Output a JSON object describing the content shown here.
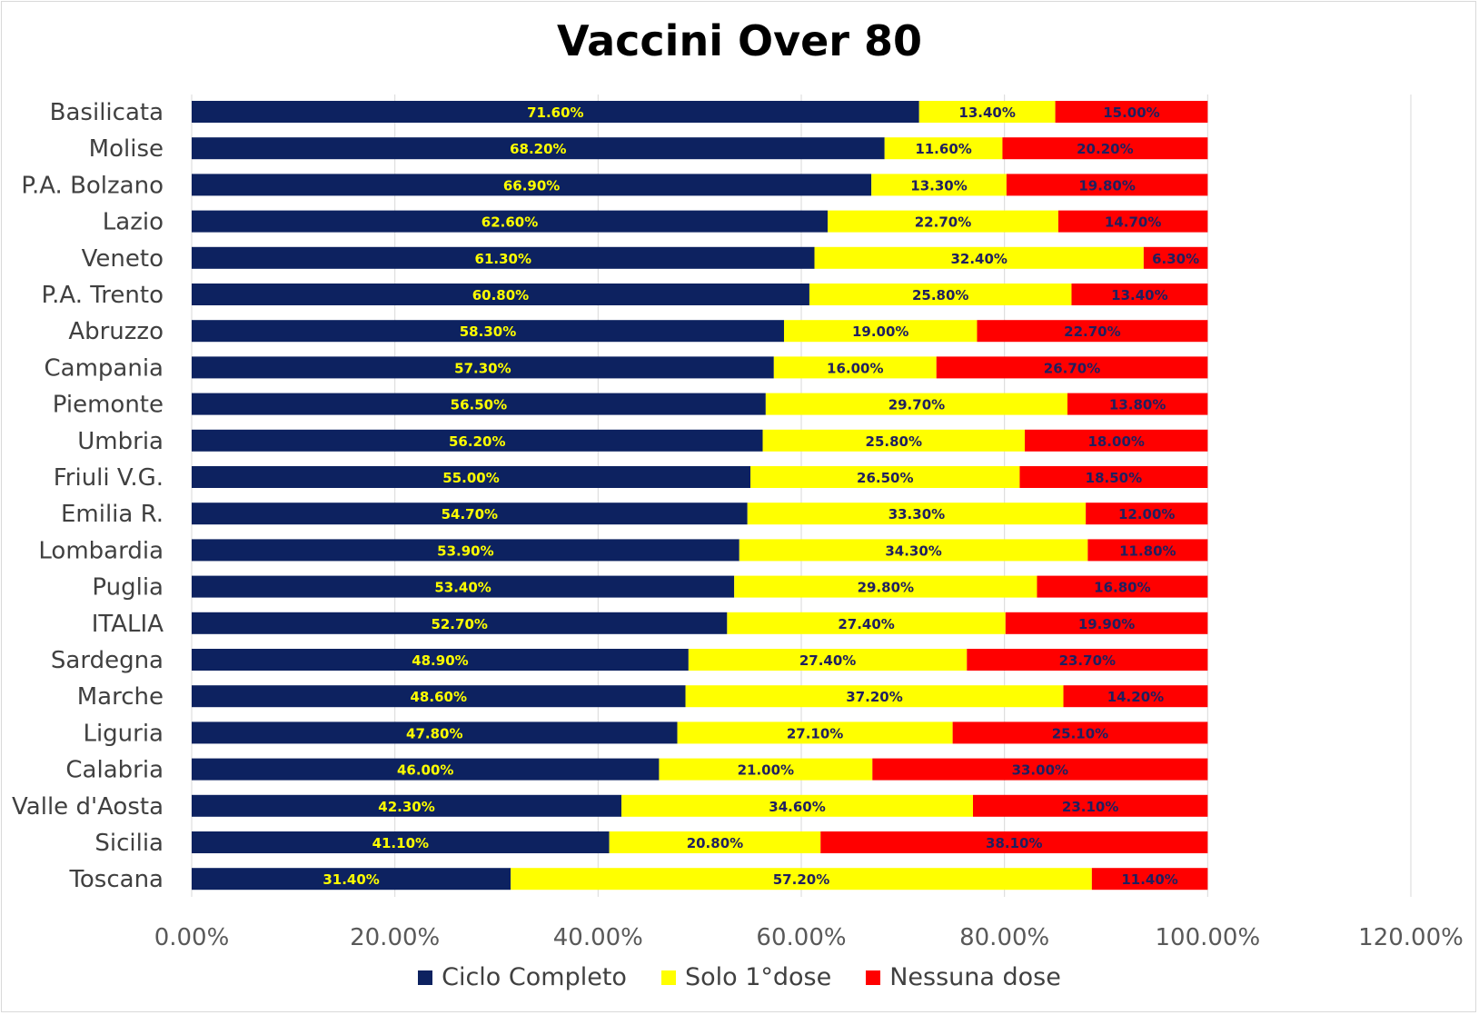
{
  "chart_data": {
    "type": "bar",
    "orientation": "horizontal",
    "stacked": true,
    "title": "Vaccini Over 80",
    "categories": [
      "Basilicata",
      "Molise",
      "P.A. Bolzano",
      "Lazio",
      "Veneto",
      "P.A. Trento",
      "Abruzzo",
      "Campania",
      "Piemonte",
      "Umbria",
      "Friuli V.G.",
      "Emilia R.",
      "Lombardia",
      "Puglia",
      "ITALIA",
      "Sardegna",
      "Marche",
      "Liguria",
      "Calabria",
      "Valle d'Aosta",
      "Sicilia",
      "Toscana"
    ],
    "series": [
      {
        "name": "Ciclo Completo",
        "color": "#0d2260",
        "label_color": "#ffff00",
        "values": [
          71.6,
          68.2,
          66.9,
          62.6,
          61.3,
          60.8,
          58.3,
          57.3,
          56.5,
          56.2,
          55.0,
          54.7,
          53.9,
          53.4,
          52.7,
          48.9,
          48.6,
          47.8,
          46.0,
          42.3,
          41.1,
          31.4
        ],
        "labels": [
          "71.60%",
          "68.20%",
          "66.90%",
          "62.60%",
          "61.30%",
          "60.80%",
          "58.30%",
          "57.30%",
          "56.50%",
          "56.20%",
          "55.00%",
          "54.70%",
          "53.90%",
          "53.40%",
          "52.70%",
          "48.90%",
          "48.60%",
          "47.80%",
          "46.00%",
          "42.30%",
          "41.10%",
          "31.40%"
        ]
      },
      {
        "name": "Solo 1°dose",
        "color": "#ffff00",
        "label_color": "#1f1f5f",
        "values": [
          13.4,
          11.6,
          13.3,
          22.7,
          32.4,
          25.8,
          19.0,
          16.0,
          29.7,
          25.8,
          26.5,
          33.3,
          34.3,
          29.8,
          27.4,
          27.4,
          37.2,
          27.1,
          21.0,
          34.6,
          20.8,
          57.2
        ],
        "labels": [
          "13.40%",
          "11.60%",
          "13.30%",
          "22.70%",
          "32.40%",
          "25.80%",
          "19.00%",
          "16.00%",
          "29.70%",
          "25.80%",
          "26.50%",
          "33.30%",
          "34.30%",
          "29.80%",
          "27.40%",
          "27.40%",
          "37.20%",
          "27.10%",
          "21.00%",
          "34.60%",
          "20.80%",
          "57.20%"
        ]
      },
      {
        "name": "Nessuna dose",
        "color": "#ff0000",
        "label_color": "#1f1f5f",
        "values": [
          15.0,
          20.2,
          19.8,
          14.7,
          6.3,
          13.4,
          22.7,
          26.7,
          13.8,
          18.0,
          18.5,
          12.0,
          11.8,
          16.8,
          19.9,
          23.7,
          14.2,
          25.1,
          33.0,
          23.1,
          38.1,
          11.4
        ],
        "labels": [
          "15.00%",
          "20.20%",
          "19.80%",
          "14.70%",
          "6.30%",
          "13.40%",
          "22.70%",
          "26.70%",
          "13.80%",
          "18.00%",
          "18.50%",
          "12.00%",
          "11.80%",
          "16.80%",
          "19.90%",
          "23.70%",
          "14.20%",
          "25.10%",
          "33.00%",
          "23.10%",
          "38.10%",
          "11.40%"
        ]
      }
    ],
    "xlim": [
      0,
      120
    ],
    "xticks": [
      0,
      20,
      40,
      60,
      80,
      100,
      120
    ],
    "xtick_labels": [
      "0.00%",
      "20.00%",
      "40.00%",
      "60.00%",
      "80.00%",
      "100.00%",
      "120.00%"
    ],
    "grid": "vertical",
    "legend_position": "bottom"
  }
}
